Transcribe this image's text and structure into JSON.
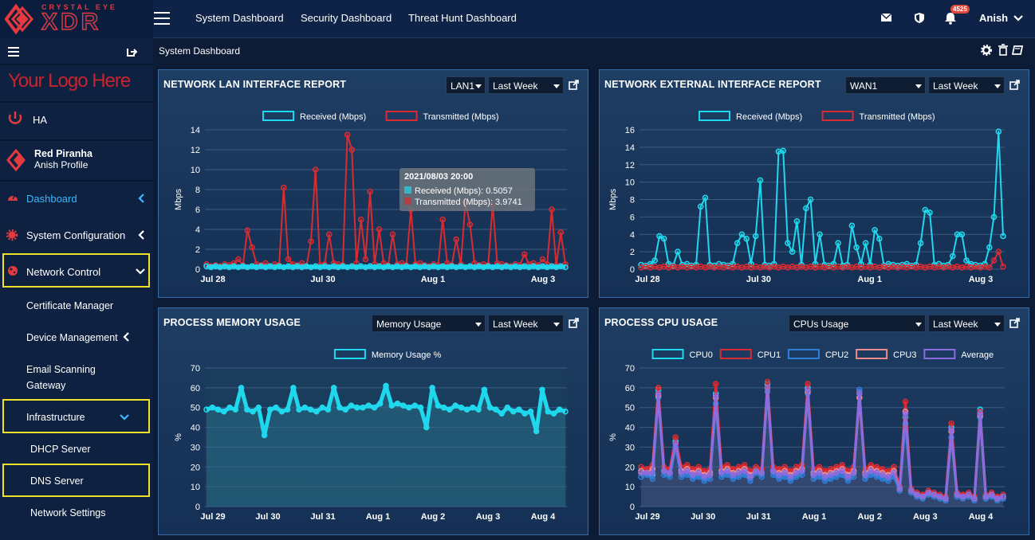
{
  "brand": {
    "top": "CRYSTAL EYE",
    "main": "XDR"
  },
  "topnav": {
    "items": [
      "System Dashboard",
      "Security Dashboard",
      "Threat Hunt Dashboard"
    ],
    "notif_count": "4525",
    "user": "Anish"
  },
  "sidebar": {
    "logo": "Your Logo Here",
    "ha": "HA",
    "profile_name": "Red Piranha",
    "profile_sub": "Anish Profile",
    "dashboard": "Dashboard",
    "system_config": "System Configuration",
    "network_control": "Network Control",
    "certificate_manager": "Certificate Manager",
    "device_management": "Device Management",
    "email_scanning_1": "Email Scanning",
    "email_scanning_2": "Gateway",
    "infrastructure": "Infrastructure",
    "dhcp": "DHCP Server",
    "dns": "DNS Server",
    "network_settings": "Network Settings"
  },
  "main": {
    "breadcrumb": "System Dashboard"
  },
  "colors": {
    "received": "#1fd8ee",
    "transmitted": "#d92b32",
    "cpu0": "#1fd8ee",
    "cpu1": "#d92b32",
    "cpu2": "#2f7fd8",
    "cpu3": "#ef8b8b",
    "average": "#8a6be0",
    "highlight": "#f1e12a"
  },
  "panels": {
    "lan": {
      "title": "NETWORK LAN INTERFACE REPORT",
      "sel1": "LAN1",
      "sel2": "Last Week"
    },
    "ext": {
      "title": "NETWORK EXTERNAL INTERFACE REPORT",
      "sel1": "WAN1",
      "sel2": "Last Week"
    },
    "mem": {
      "title": "PROCESS MEMORY USAGE",
      "sel1": "Memory Usage",
      "sel2": "Last Week"
    },
    "cpu": {
      "title": "PROCESS CPU USAGE",
      "sel1": "CPUs Usage",
      "sel2": "Last Week"
    }
  },
  "tooltip": {
    "title": "2021/08/03 20:00",
    "line1": "Received (Mbps): 0.5057",
    "line2": "Transmitted (Mbps): 3.9741"
  },
  "chart_data": [
    {
      "type": "line",
      "chart": "lan",
      "ylabel": "Mbps",
      "ylim": [
        0,
        14
      ],
      "yticks": [
        0,
        2,
        4,
        6,
        8,
        10,
        12,
        14
      ],
      "xticks": [
        "Jul 28",
        "Jul 30",
        "Aug 1",
        "Aug 3"
      ],
      "series": [
        {
          "name": "Received (Mbps)",
          "values": [
            0.3,
            0.2,
            0.3,
            0.2,
            0.3,
            0.2,
            0.3,
            0.2,
            0.3,
            0.2,
            0.3,
            0.2,
            0.3,
            0.2,
            0.3,
            0.2,
            0.3,
            0.2,
            0.3,
            0.2,
            0.3,
            0.2,
            0.3,
            0.2,
            0.3,
            0.2,
            0.3,
            0.2,
            0.3,
            0.2,
            0.3,
            0.2,
            0.3,
            0.2,
            0.3,
            0.2,
            0.3,
            0.2,
            0.3,
            0.2,
            0.3,
            0.2,
            0.3,
            0.2,
            0.3,
            0.2,
            0.3,
            0.2,
            0.3,
            0.2,
            0.3,
            0.2,
            0.3,
            0.2,
            0.3,
            0.2,
            0.3,
            0.2,
            0.3,
            0.2,
            0.3,
            0.2,
            0.3,
            0.2,
            0.3,
            0.2,
            0.3,
            0.2,
            0.3,
            0.2,
            0.3,
            0.2,
            0.3,
            0.2,
            0.3,
            0.2,
            0.3,
            0.2,
            0.3,
            0.2
          ]
        },
        {
          "name": "Transmitted (Mbps)",
          "values": [
            0.5,
            0.3,
            0.4,
            0.3,
            0.5,
            0.4,
            0.6,
            1.0,
            0.4,
            3.9,
            2.2,
            0.5,
            0.4,
            0.6,
            0.3,
            0.5,
            0.4,
            8.2,
            1.0,
            0.5,
            0.4,
            0.6,
            0.3,
            2.8,
            10.0,
            0.4,
            0.5,
            3.5,
            0.6,
            0.5,
            0.4,
            13.5,
            12.0,
            0.6,
            5.0,
            1.0,
            7.8,
            0.5,
            4.0,
            0.6,
            0.4,
            3.5,
            0.5,
            0.6,
            0.4,
            6.0,
            0.5,
            0.6,
            0.4,
            0.3,
            0.5,
            0.4,
            5.0,
            0.6,
            0.4,
            3.0,
            0.5,
            6.8,
            4.5,
            0.6,
            0.4,
            0.5,
            0.4,
            6.5,
            0.6,
            0.5,
            0.4,
            0.3,
            0.5,
            0.4,
            1.5,
            0.5,
            0.6,
            0.4,
            1.0,
            0.5,
            6.0,
            0.4,
            3.7,
            0.5
          ]
        }
      ]
    },
    {
      "type": "line",
      "chart": "ext",
      "ylabel": "Mbps",
      "ylim": [
        0,
        16
      ],
      "yticks": [
        0,
        2,
        4,
        6,
        8,
        10,
        12,
        14,
        16
      ],
      "xticks": [
        "Jul 28",
        "Jul 30",
        "Aug 1",
        "Aug 3"
      ],
      "series": [
        {
          "name": "Received (Mbps)",
          "values": [
            0.5,
            0.4,
            0.6,
            1.0,
            3.8,
            3.5,
            0.6,
            0.4,
            2.0,
            0.5,
            0.6,
            0.4,
            0.5,
            7.2,
            8.2,
            0.5,
            0.4,
            0.6,
            0.5,
            0.4,
            0.6,
            3.0,
            4.0,
            3.5,
            0.6,
            3.8,
            10.2,
            0.5,
            0.4,
            0.6,
            13.5,
            13.6,
            3.0,
            2.0,
            5.5,
            0.5,
            7.0,
            8.0,
            0.6,
            4.0,
            0.5,
            0.4,
            0.6,
            3.0,
            0.4,
            0.5,
            5.0,
            2.5,
            0.6,
            3.0,
            0.5,
            4.5,
            3.5,
            0.4,
            0.6,
            0.5,
            0.4,
            0.5,
            0.6,
            0.4,
            0.5,
            3.0,
            6.8,
            6.5,
            0.5,
            0.6,
            0.4,
            0.5,
            1.5,
            4.0,
            4.0,
            1.0,
            0.6,
            0.5,
            0.4,
            0.6,
            2.5,
            6.0,
            15.8,
            3.8
          ]
        },
        {
          "name": "Transmitted (Mbps)",
          "values": [
            0.2,
            0.3,
            0.2,
            0.3,
            0.2,
            0.3,
            0.2,
            0.3,
            0.2,
            0.3,
            0.2,
            0.3,
            0.2,
            0.3,
            0.2,
            0.3,
            0.2,
            0.3,
            0.2,
            0.3,
            0.2,
            0.3,
            0.2,
            0.3,
            0.2,
            0.3,
            0.2,
            0.3,
            0.2,
            0.3,
            0.2,
            0.3,
            0.2,
            0.3,
            0.2,
            0.3,
            0.2,
            0.3,
            0.2,
            0.3,
            0.2,
            0.3,
            0.2,
            0.3,
            0.2,
            0.3,
            0.2,
            0.3,
            0.2,
            0.3,
            0.2,
            0.3,
            0.2,
            0.3,
            0.2,
            0.3,
            0.2,
            0.3,
            0.2,
            0.3,
            0.2,
            0.3,
            0.2,
            0.3,
            0.2,
            0.3,
            0.2,
            0.3,
            0.2,
            0.3,
            0.2,
            0.3,
            0.2,
            0.3,
            0.2,
            0.3,
            0.2,
            1.0,
            2.0,
            0.3
          ]
        }
      ]
    },
    {
      "type": "area",
      "chart": "mem",
      "ylabel": "%",
      "ylim": [
        0,
        70
      ],
      "yticks": [
        0,
        10,
        20,
        30,
        40,
        50,
        60,
        70
      ],
      "xticks": [
        "Jul 29",
        "Jul 30",
        "Jul 31",
        "Aug 1",
        "Aug 2",
        "Aug 3",
        "Aug 4"
      ],
      "series": [
        {
          "name": "Memory Usage %",
          "values": [
            49,
            50,
            49,
            48,
            50,
            49,
            60,
            49,
            48,
            50,
            36,
            49,
            50,
            48,
            49,
            60,
            49,
            50,
            49,
            48,
            50,
            49,
            60,
            50,
            49,
            51,
            50,
            50,
            51,
            50,
            52,
            61,
            51,
            52,
            51,
            50,
            51,
            50,
            40,
            60,
            51,
            50,
            49,
            51,
            50,
            49,
            50,
            49,
            59,
            50,
            49,
            47,
            50,
            48,
            49,
            47,
            48,
            38,
            59,
            48,
            47,
            49,
            48
          ]
        }
      ]
    },
    {
      "type": "line",
      "chart": "cpu",
      "ylabel": "%",
      "ylim": [
        0,
        70
      ],
      "yticks": [
        0,
        10,
        20,
        30,
        40,
        50,
        60,
        70
      ],
      "xticks": [
        "Jul 29",
        "Jul 30",
        "Jul 31",
        "Aug 1",
        "Aug 2",
        "Aug 3",
        "Aug 4"
      ],
      "series": [
        {
          "name": "CPU0",
          "values": [
            17,
            18,
            16,
            59,
            18,
            17,
            33,
            17,
            18,
            16,
            17,
            15,
            16,
            57,
            17,
            18,
            16,
            17,
            18,
            15,
            19,
            17,
            62,
            18,
            16,
            17,
            15,
            17,
            18,
            60,
            16,
            17,
            15,
            16,
            17,
            18,
            15,
            17,
            58,
            16,
            18,
            17,
            16,
            15,
            17,
            9,
            45,
            8,
            6,
            5,
            7,
            6,
            5,
            4,
            40,
            6,
            5,
            6,
            4,
            49,
            5,
            6,
            4,
            5
          ]
        },
        {
          "name": "CPU1",
          "values": [
            20,
            19,
            21,
            60,
            20,
            19,
            35,
            20,
            21,
            19,
            20,
            18,
            19,
            62,
            20,
            21,
            19,
            20,
            21,
            18,
            20,
            19,
            63,
            20,
            19,
            20,
            18,
            20,
            21,
            62,
            19,
            20,
            18,
            19,
            20,
            21,
            18,
            20,
            58,
            19,
            21,
            20,
            19,
            18,
            20,
            10,
            53,
            9,
            7,
            6,
            8,
            7,
            6,
            5,
            42,
            7,
            6,
            7,
            5,
            48,
            6,
            7,
            5,
            6
          ]
        },
        {
          "name": "CPU2",
          "values": [
            15,
            16,
            14,
            55,
            16,
            15,
            30,
            15,
            16,
            14,
            15,
            13,
            14,
            52,
            15,
            16,
            14,
            15,
            16,
            13,
            17,
            15,
            58,
            16,
            14,
            15,
            13,
            15,
            16,
            57,
            14,
            15,
            13,
            14,
            15,
            16,
            13,
            15,
            59,
            14,
            16,
            15,
            14,
            13,
            15,
            8,
            42,
            7,
            5,
            4,
            6,
            5,
            4,
            3,
            35,
            5,
            4,
            5,
            3,
            45,
            4,
            5,
            3,
            4
          ]
        },
        {
          "name": "CPU3",
          "values": [
            18,
            17,
            19,
            56,
            18,
            17,
            32,
            18,
            19,
            17,
            18,
            16,
            17,
            55,
            18,
            19,
            17,
            18,
            19,
            16,
            18,
            17,
            60,
            18,
            17,
            18,
            16,
            18,
            19,
            58,
            17,
            18,
            16,
            17,
            18,
            19,
            16,
            18,
            55,
            17,
            19,
            18,
            17,
            16,
            18,
            9,
            48,
            8,
            6,
            5,
            7,
            6,
            5,
            4,
            38,
            6,
            5,
            6,
            4,
            46,
            5,
            6,
            4,
            5
          ]
        },
        {
          "name": "Average",
          "values": [
            17,
            17,
            17,
            57,
            18,
            17,
            32,
            17,
            18,
            16,
            17,
            15,
            16,
            56,
            17,
            18,
            16,
            17,
            18,
            15,
            18,
            17,
            60,
            18,
            16,
            17,
            15,
            17,
            18,
            59,
            16,
            17,
            15,
            16,
            17,
            18,
            15,
            17,
            57,
            16,
            18,
            17,
            16,
            15,
            17,
            9,
            47,
            8,
            6,
            5,
            7,
            6,
            5,
            4,
            39,
            6,
            5,
            6,
            4,
            47,
            5,
            6,
            4,
            5
          ]
        }
      ]
    }
  ]
}
